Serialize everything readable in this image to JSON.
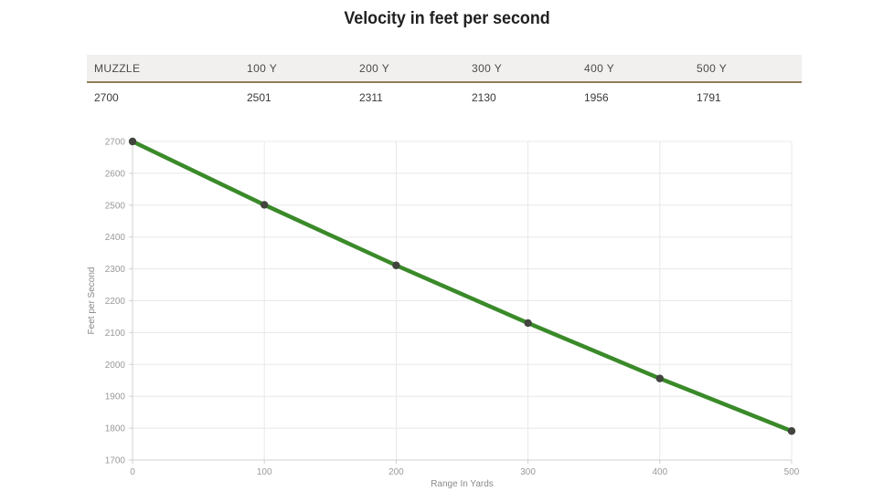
{
  "title": "Velocity in feet per second",
  "table": {
    "headers": [
      "MUZZLE",
      "100 Y",
      "200 Y",
      "300 Y",
      "400 Y",
      "500 Y"
    ],
    "values": [
      "2700",
      "2501",
      "2311",
      "2130",
      "1956",
      "1791"
    ]
  },
  "chart_data": {
    "type": "line",
    "x": [
      0,
      100,
      200,
      300,
      400,
      500
    ],
    "series": [
      {
        "name": "Velocity",
        "values": [
          2700,
          2501,
          2311,
          2130,
          1956,
          1791
        ]
      }
    ],
    "xlabel": "Range In Yards",
    "ylabel": "Feet per Second",
    "xlim": [
      0,
      500
    ],
    "ylim": [
      1700,
      2700
    ],
    "x_ticks": [
      0,
      100,
      200,
      300,
      400,
      500
    ],
    "y_ticks": [
      1700,
      1800,
      1900,
      2000,
      2100,
      2200,
      2300,
      2400,
      2500,
      2600,
      2700
    ],
    "grid": true,
    "legend": "none",
    "line_color": "#3a8a29",
    "marker_color": "#42453e",
    "gridline_color": "#e8e8e8",
    "axis_color": "#d0d0d0",
    "tick_label_color": "#9a9a9a",
    "axis_title_color": "#8a8a8a"
  },
  "colors": {
    "table_header_bg": "#f1f0ee",
    "table_header_border": "#8e7d5b",
    "title_text": "#212121"
  }
}
